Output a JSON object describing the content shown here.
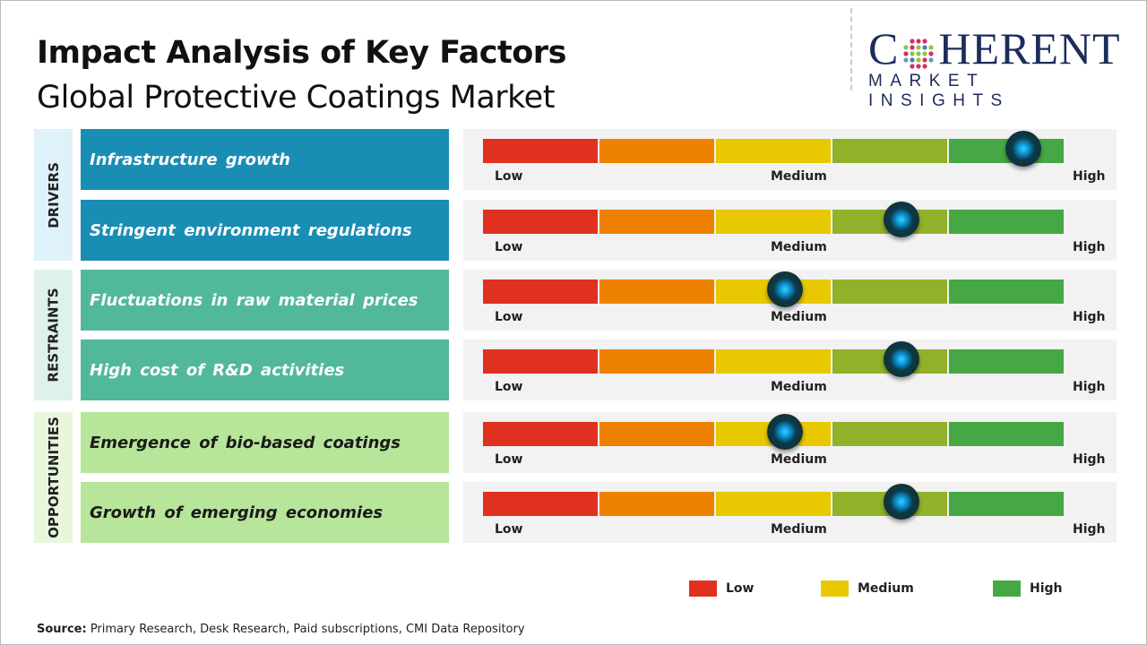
{
  "header": {
    "title": "Impact Analysis of Key Factors",
    "subtitle": "Global Protective Coatings Market"
  },
  "logo": {
    "text": "COHERENT",
    "tagline": "MARKET INSIGHTS"
  },
  "chart_data": {
    "type": "gauge",
    "scale_labels": [
      "Low",
      "Medium",
      "High"
    ],
    "segment_colors": [
      "#e03020",
      "#ee8200",
      "#e8c800",
      "#92b12a",
      "#45a844"
    ],
    "categories": [
      {
        "name": "DRIVERS",
        "color": "#dff1f9",
        "factor_color": "#1a8db5",
        "text_color": "#ffffff",
        "factors": [
          {
            "label": "Infrastructure growth",
            "impact": 0.93
          },
          {
            "label": "Stringent environment regulations",
            "impact": 0.72
          }
        ]
      },
      {
        "name": "RESTRAINTS",
        "color": "#def1eb",
        "factor_color": "#52b89a",
        "text_color": "#ffffff",
        "factors": [
          {
            "label": "Fluctuations in raw material prices",
            "impact": 0.52
          },
          {
            "label": "High cost of R&D activities",
            "impact": 0.72
          }
        ]
      },
      {
        "name": "OPPORTUNITIES",
        "color": "#e8f6dc",
        "factor_color": "#b7e59a",
        "text_color": "#1a1a1a",
        "factors": [
          {
            "label": "Emergence of bio-based coatings",
            "impact": 0.52
          },
          {
            "label": "Growth of emerging economies",
            "impact": 0.72
          }
        ]
      }
    ],
    "legend": [
      {
        "label": "Low",
        "color": "#e03020"
      },
      {
        "label": "Medium",
        "color": "#e8c800"
      },
      {
        "label": "High",
        "color": "#45a844"
      }
    ]
  },
  "source": {
    "label": "Source:",
    "text": " Primary Research, Desk Research, Paid subscriptions, CMI Data Repository"
  }
}
